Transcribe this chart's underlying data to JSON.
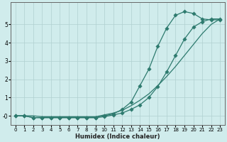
{
  "xlabel": "Humidex (Indice chaleur)",
  "bg_color": "#d0ecec",
  "grid_color": "#b0d0d0",
  "line_color": "#2d7a6e",
  "xlim": [
    -0.5,
    23.5
  ],
  "ylim": [
    -0.5,
    6.2
  ],
  "xticks": [
    0,
    1,
    2,
    3,
    4,
    5,
    6,
    7,
    8,
    9,
    10,
    11,
    12,
    13,
    14,
    15,
    16,
    17,
    18,
    19,
    20,
    21,
    22,
    23
  ],
  "yticks": [
    0,
    1,
    2,
    3,
    4,
    5
  ],
  "line1_x": [
    0,
    1,
    2,
    3,
    4,
    5,
    6,
    7,
    8,
    9,
    10,
    11,
    12,
    13,
    14,
    15,
    16,
    17,
    18,
    19,
    20,
    21,
    22,
    23
  ],
  "line1_y": [
    0.0,
    0.0,
    0.0,
    -0.05,
    -0.05,
    -0.05,
    -0.05,
    -0.05,
    -0.05,
    -0.05,
    0.05,
    0.15,
    0.3,
    0.55,
    0.85,
    1.2,
    1.65,
    2.15,
    2.7,
    3.3,
    3.9,
    4.5,
    5.0,
    5.3
  ],
  "line2_x": [
    0,
    1,
    2,
    3,
    4,
    5,
    6,
    7,
    8,
    9,
    10,
    11,
    12,
    13,
    14,
    15,
    16,
    17,
    18,
    19,
    20,
    21,
    22,
    23
  ],
  "line2_y": [
    0.0,
    0.0,
    -0.1,
    -0.1,
    -0.1,
    -0.1,
    -0.1,
    -0.1,
    -0.1,
    -0.1,
    0.0,
    0.1,
    0.35,
    0.75,
    1.65,
    2.55,
    3.8,
    4.8,
    5.5,
    5.7,
    5.6,
    5.3,
    5.25,
    5.25
  ],
  "line3_x": [
    0,
    1,
    2,
    3,
    4,
    5,
    6,
    7,
    8,
    9,
    10,
    11,
    12,
    13,
    14,
    15,
    16,
    17,
    18,
    19,
    20,
    21,
    22,
    23
  ],
  "line3_y": [
    0.0,
    0.0,
    -0.1,
    -0.1,
    -0.1,
    -0.1,
    -0.1,
    -0.1,
    -0.1,
    -0.1,
    -0.05,
    0.05,
    0.15,
    0.35,
    0.6,
    1.0,
    1.6,
    2.4,
    3.3,
    4.2,
    4.85,
    5.15,
    5.3,
    5.3
  ],
  "marker": "D",
  "marker_size": 2.8,
  "linewidth": 0.9
}
